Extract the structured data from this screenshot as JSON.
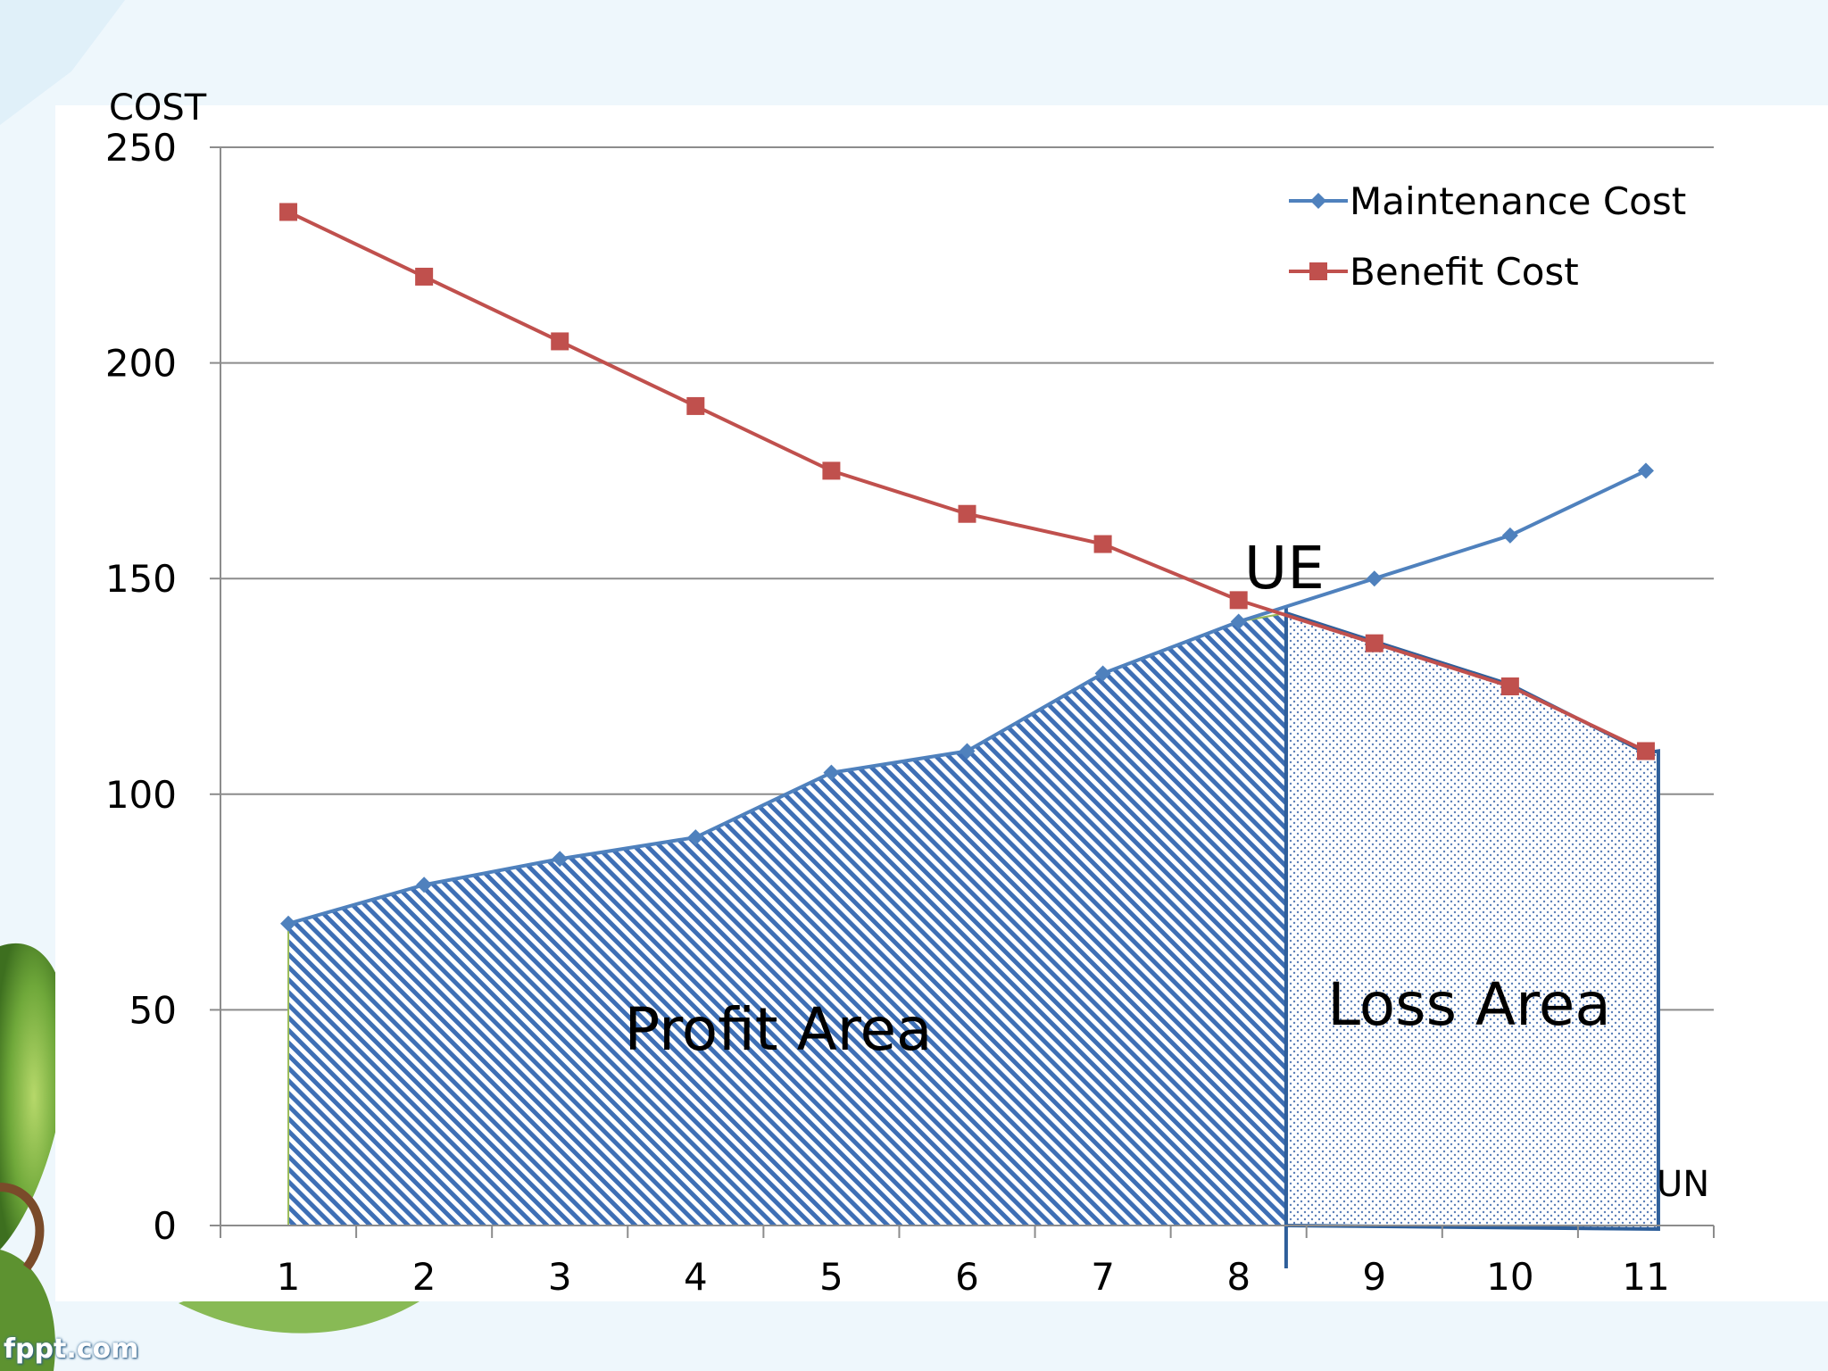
{
  "slide": {
    "watermark": "fppt.com"
  },
  "chart_data": {
    "type": "line",
    "ylabel": "COST",
    "xlabel": "",
    "categories": [
      "1",
      "2",
      "3",
      "4",
      "5",
      "6",
      "7",
      "8",
      "9",
      "10",
      "11"
    ],
    "x": [
      1,
      2,
      3,
      4,
      5,
      6,
      7,
      8,
      9,
      10,
      11
    ],
    "ylim": [
      0,
      250
    ],
    "yticks": [
      0,
      50,
      100,
      150,
      200,
      250
    ],
    "grid": true,
    "legend": "top-right",
    "series": [
      {
        "name": "Maintenance Cost",
        "marker": "diamond",
        "color": "#4f81bd",
        "values": [
          70,
          79,
          85,
          90,
          105,
          110,
          128,
          140,
          150,
          160,
          175
        ]
      },
      {
        "name": "Benefit Cost",
        "marker": "square",
        "color": "#c0504d",
        "values": [
          235,
          220,
          205,
          190,
          175,
          165,
          158,
          145,
          135,
          125,
          110
        ]
      }
    ],
    "annotations": {
      "intersection_label": "UE",
      "intersection_x": 8.35,
      "intersection_y": 142,
      "end_label": "UN",
      "profit_label": "Profit Area",
      "loss_label": "Loss Area"
    }
  }
}
